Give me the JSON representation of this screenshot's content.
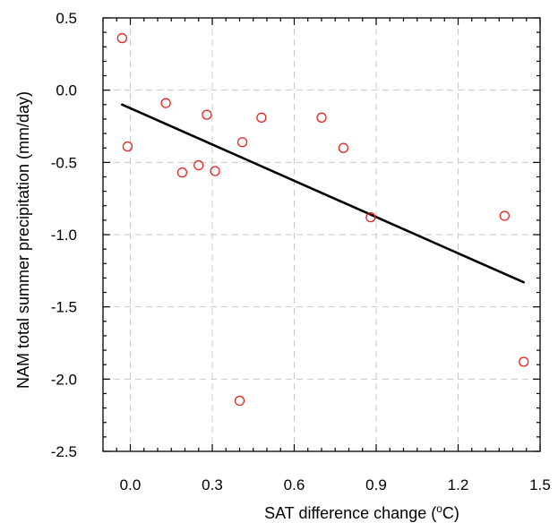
{
  "chart_data": {
    "type": "scatter",
    "title": "",
    "xlabel": "SAT difference change (",
    "xlabel_sup": "o",
    "xlabel_suffix": "C)",
    "ylabel": "NAM total summer precipitation (mm/day)",
    "xlim": [
      -0.1,
      1.5
    ],
    "ylim": [
      -2.5,
      0.5
    ],
    "x_ticks": [
      0.0,
      0.3,
      0.6,
      0.9,
      1.2,
      1.5
    ],
    "x_tick_labels": [
      "0.0",
      "0.3",
      "0.6",
      "0.9",
      "1.2",
      "1.5"
    ],
    "y_ticks": [
      0.5,
      0.0,
      -0.5,
      -1.0,
      -1.5,
      -2.0,
      -2.5
    ],
    "y_tick_labels": [
      "0.5",
      "0.0",
      "-0.5",
      "-1.0",
      "-1.5",
      "-2.0",
      "-2.5"
    ],
    "grid": true,
    "marker_color": "#e8231f",
    "line_color": "#000000",
    "points": [
      {
        "x": -0.03,
        "y": 0.36
      },
      {
        "x": -0.01,
        "y": -0.39
      },
      {
        "x": 0.13,
        "y": -0.09
      },
      {
        "x": 0.19,
        "y": -0.57
      },
      {
        "x": 0.25,
        "y": -0.52
      },
      {
        "x": 0.28,
        "y": -0.17
      },
      {
        "x": 0.31,
        "y": -0.56
      },
      {
        "x": 0.41,
        "y": -0.36
      },
      {
        "x": 0.48,
        "y": -0.19
      },
      {
        "x": 0.7,
        "y": -0.19
      },
      {
        "x": 0.78,
        "y": -0.4
      },
      {
        "x": 0.88,
        "y": -0.88
      },
      {
        "x": 1.37,
        "y": -0.87
      },
      {
        "x": 1.44,
        "y": -1.88
      },
      {
        "x": 0.4,
        "y": -2.15
      }
    ],
    "fit_line": {
      "x": [
        -0.03,
        1.44
      ],
      "y": [
        -0.1,
        -1.33
      ]
    }
  }
}
